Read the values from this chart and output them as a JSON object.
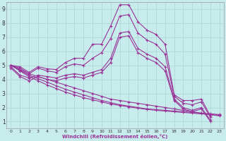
{
  "xlabel": "Windchill (Refroidissement éolien,°C)",
  "bg_color": "#c8ecec",
  "grid_color": "#aad4d4",
  "line_color": "#993399",
  "x_ticks": [
    0,
    1,
    2,
    3,
    4,
    5,
    6,
    7,
    8,
    9,
    10,
    11,
    12,
    13,
    14,
    15,
    16,
    17,
    18,
    19,
    20,
    21,
    22,
    23
  ],
  "y_ticks": [
    1,
    2,
    3,
    4,
    5,
    6,
    7,
    8,
    9
  ],
  "xlim": [
    -0.5,
    23.5
  ],
  "ylim": [
    0.5,
    9.5
  ],
  "series": [
    [
      5.0,
      4.9,
      4.5,
      4.9,
      4.75,
      4.7,
      5.2,
      5.5,
      5.5,
      6.5,
      6.5,
      7.8,
      9.3,
      9.3,
      8.1,
      7.5,
      7.2,
      6.5,
      2.9,
      2.5,
      2.5,
      2.6,
      1.4,
      null
    ],
    [
      5.0,
      4.8,
      4.4,
      4.8,
      4.6,
      4.5,
      4.9,
      5.1,
      5.0,
      5.5,
      5.9,
      6.9,
      8.5,
      8.6,
      7.3,
      6.8,
      6.5,
      5.8,
      2.8,
      2.3,
      2.2,
      2.4,
      1.3,
      null
    ],
    [
      4.9,
      4.3,
      4.1,
      4.3,
      4.2,
      4.1,
      4.3,
      4.4,
      4.3,
      4.5,
      4.7,
      5.5,
      7.3,
      7.4,
      6.2,
      5.8,
      5.5,
      4.9,
      2.6,
      2.0,
      1.8,
      2.0,
      1.1,
      null
    ],
    [
      4.8,
      4.2,
      3.9,
      4.2,
      4.0,
      3.9,
      4.1,
      4.2,
      4.1,
      4.3,
      4.5,
      5.2,
      7.0,
      7.1,
      5.9,
      5.5,
      5.2,
      4.6,
      2.5,
      1.9,
      1.7,
      1.9,
      1.0,
      null
    ]
  ],
  "diag_series": [
    [
      5.0,
      4.7,
      4.4,
      4.2,
      4.0,
      3.8,
      3.6,
      3.4,
      3.2,
      3.0,
      2.8,
      2.6,
      2.5,
      2.4,
      2.3,
      2.2,
      2.1,
      2.0,
      1.9,
      1.8,
      1.7,
      1.6,
      1.5,
      1.4
    ],
    [
      5.0,
      4.65,
      4.3,
      4.05,
      3.8,
      3.55,
      3.3,
      3.1,
      2.9,
      2.7,
      2.5,
      2.35,
      2.2,
      2.1,
      2.0,
      1.9,
      1.85,
      1.8,
      1.75,
      1.7,
      1.65,
      1.6,
      1.55,
      1.5
    ],
    [
      5.0,
      4.6,
      4.2,
      3.9,
      3.6,
      3.35,
      3.1,
      2.9,
      2.7,
      2.55,
      2.4,
      2.25,
      2.15,
      2.05,
      1.95,
      1.87,
      1.8,
      1.75,
      1.7,
      1.65,
      1.6,
      1.55,
      1.5,
      1.45
    ]
  ]
}
